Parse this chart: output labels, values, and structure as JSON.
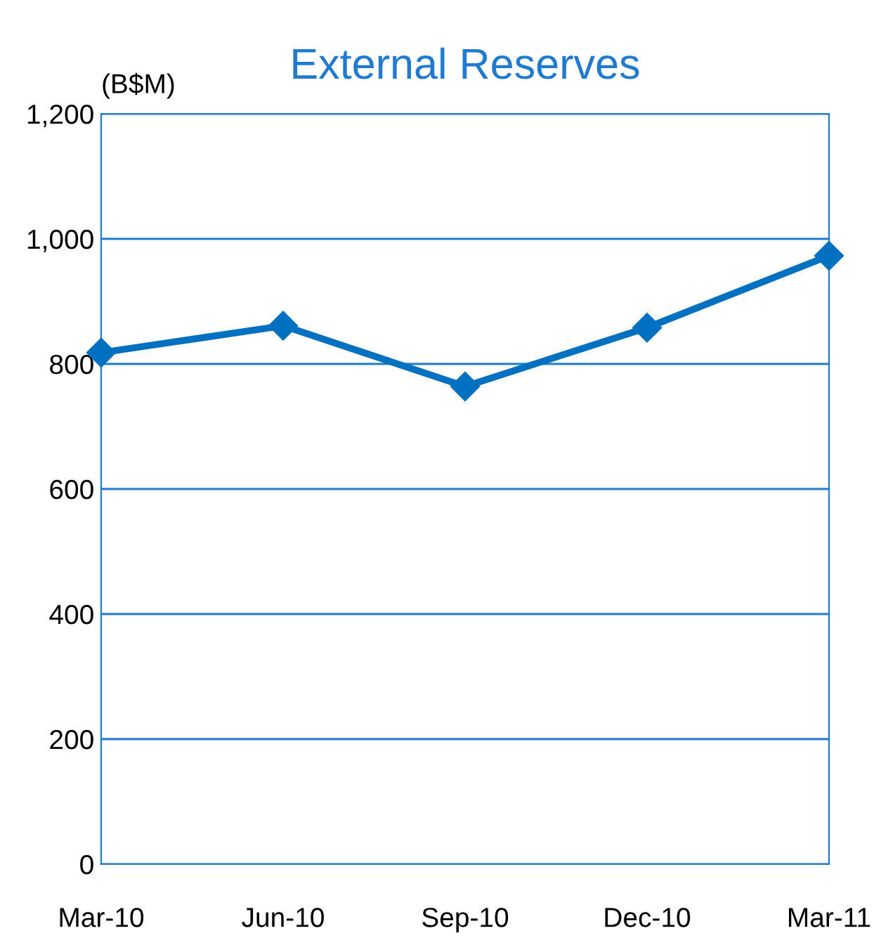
{
  "chart_data": {
    "type": "line",
    "title": "External Reserves",
    "ylabel": "(B$M)",
    "categories": [
      "Mar-10",
      "Jun-10",
      "Sep-10",
      "Dec-10",
      "Mar-11"
    ],
    "series": [
      {
        "color": "#0070c0",
        "values": [
          818,
          861,
          764,
          858,
          973
        ]
      }
    ],
    "ylim": [
      0,
      1200
    ],
    "yticks": [
      0,
      200,
      400,
      600,
      800,
      {
        "value": 1000,
        "label": "1,000"
      },
      {
        "value": 1200,
        "label": "1,200"
      }
    ],
    "grid": "y",
    "marker": "diamond",
    "line_style": "solid",
    "legend": false
  }
}
